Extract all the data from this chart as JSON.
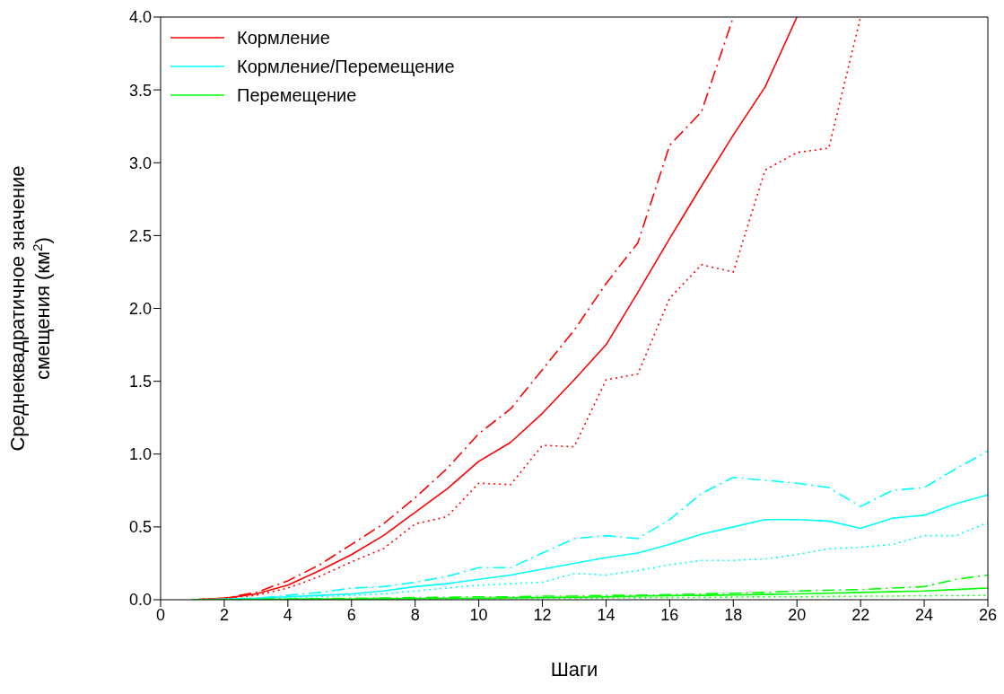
{
  "chart_data": {
    "type": "line",
    "xlabel": "Шаги",
    "ylabel": "Среднеквадратичное значение смещения (км$^{2}$)",
    "x": [
      1,
      2,
      3,
      4,
      5,
      6,
      7,
      8,
      9,
      10,
      11,
      12,
      13,
      14,
      15,
      16,
      17,
      18,
      19,
      20,
      21,
      22,
      23,
      24,
      25,
      26
    ],
    "xlim": [
      0,
      26
    ],
    "xticks": [
      0,
      2,
      4,
      6,
      8,
      10,
      12,
      14,
      16,
      18,
      20,
      22,
      24,
      26
    ],
    "ylim": [
      0,
      4
    ],
    "yticks": [
      {
        "value": 0,
        "label": "0.0"
      },
      {
        "value": 0.5,
        "label": "0.5"
      },
      {
        "value": 1,
        "label": "1.0"
      },
      {
        "value": 1.5,
        "label": "1.5"
      },
      {
        "value": 2,
        "label": "2.0"
      },
      {
        "value": 2.5,
        "label": "2.5"
      },
      {
        "value": 3,
        "label": "3.0"
      },
      {
        "value": 3.5,
        "label": "3.5"
      },
      {
        "value": 4,
        "label": "4.0"
      }
    ],
    "grid": false,
    "legend": "top left",
    "marker": "none",
    "series": [
      {
        "name": "Кормление",
        "color": "#ff0000",
        "line_style": "solid",
        "values": [
          0,
          0.01,
          0.04,
          0.1,
          0.2,
          0.31,
          0.44,
          0.6,
          0.76,
          0.95,
          1.08,
          1.28,
          1.51,
          1.75,
          2.11,
          2.48,
          2.84,
          3.19,
          3.52,
          4.0,
          null,
          null,
          null,
          null,
          null,
          null
        ]
      },
      {
        "name": "Кормление/Перемещение",
        "color": "#00ffff",
        "line_style": "solid",
        "values": [
          0,
          0.005,
          0.01,
          0.02,
          0.03,
          0.04,
          0.06,
          0.09,
          0.11,
          0.14,
          0.17,
          0.21,
          0.25,
          0.29,
          0.32,
          0.38,
          0.45,
          0.5,
          0.55,
          0.55,
          0.54,
          0.49,
          0.56,
          0.58,
          0.66,
          0.72
        ]
      },
      {
        "name": "Перемещение",
        "color": "#00ff00",
        "line_style": "solid",
        "values": [
          0,
          0.001,
          0.002,
          0.003,
          0.004,
          0.005,
          0.007,
          0.008,
          0.009,
          0.01,
          0.012,
          0.015,
          0.017,
          0.02,
          0.025,
          0.028,
          0.03,
          0.033,
          0.036,
          0.04,
          0.045,
          0.05,
          0.055,
          0.06,
          0.07,
          0.08
        ]
      },
      {
        "color": "#ff0000",
        "line_style": "dashdot",
        "values": [
          0,
          0.01,
          0.05,
          0.13,
          0.24,
          0.38,
          0.52,
          0.7,
          0.9,
          1.14,
          1.31,
          1.58,
          1.85,
          2.17,
          2.45,
          3.12,
          3.35,
          4.0,
          null,
          null,
          null,
          null,
          null,
          null,
          null,
          null
        ]
      },
      {
        "color": "#ff0000",
        "line_style": "dotted",
        "values": [
          0,
          0.01,
          0.03,
          0.08,
          0.16,
          0.26,
          0.35,
          0.52,
          0.57,
          0.8,
          0.79,
          1.06,
          1.05,
          1.51,
          1.55,
          2.07,
          2.3,
          2.25,
          2.95,
          3.07,
          3.1,
          4.0,
          null,
          null,
          null,
          null
        ]
      },
      {
        "color": "#00ffff",
        "line_style": "dashdot",
        "values": [
          0,
          0.005,
          0.01,
          0.03,
          0.05,
          0.08,
          0.09,
          0.12,
          0.16,
          0.22,
          0.22,
          0.32,
          0.42,
          0.44,
          0.42,
          0.55,
          0.73,
          0.84,
          0.82,
          0.8,
          0.77,
          0.64,
          0.75,
          0.77,
          0.9,
          1.02
        ]
      },
      {
        "color": "#00ffff",
        "line_style": "dotted",
        "values": [
          0,
          0.003,
          0.007,
          0.01,
          0.02,
          0.03,
          0.04,
          0.06,
          0.08,
          0.1,
          0.11,
          0.12,
          0.18,
          0.17,
          0.2,
          0.24,
          0.27,
          0.27,
          0.28,
          0.31,
          0.35,
          0.36,
          0.38,
          0.44,
          0.44,
          0.53
        ]
      },
      {
        "color": "#00ff00",
        "line_style": "dashdot",
        "values": [
          0,
          0.002,
          0.004,
          0.006,
          0.008,
          0.01,
          0.012,
          0.015,
          0.017,
          0.02,
          0.02,
          0.025,
          0.025,
          0.03,
          0.03,
          0.035,
          0.04,
          0.045,
          0.05,
          0.06,
          0.065,
          0.07,
          0.08,
          0.09,
          0.14,
          0.17
        ]
      },
      {
        "color": "#00ff00",
        "line_style": "dotted",
        "values": [
          0,
          0.001,
          0.002,
          0.003,
          0.004,
          0.005,
          0.005,
          0.006,
          0.007,
          0.008,
          0.009,
          0.01,
          0.01,
          0.012,
          0.013,
          0.015,
          0.016,
          0.018,
          0.02,
          0.02,
          0.022,
          0.024,
          0.025,
          0.027,
          0.028,
          0.03
        ]
      }
    ]
  }
}
